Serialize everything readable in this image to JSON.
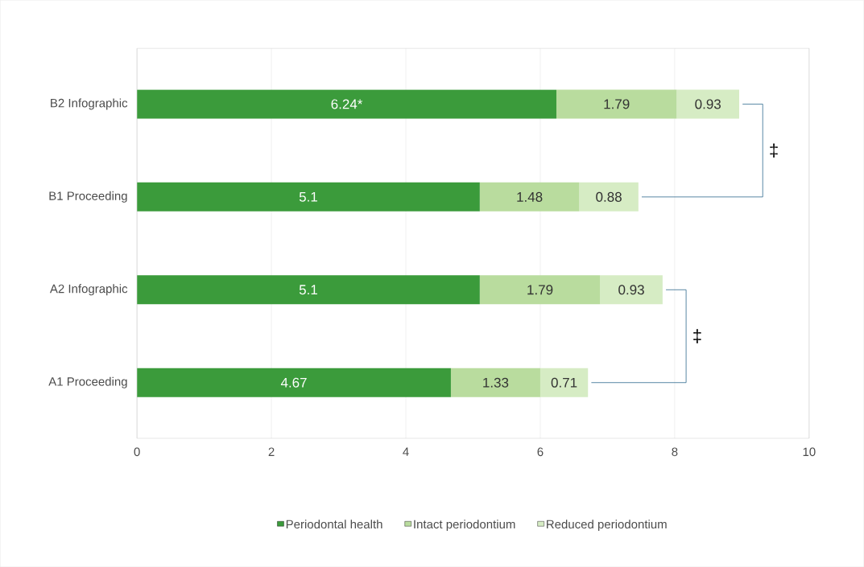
{
  "chart_data": {
    "type": "bar",
    "orientation": "horizontal",
    "stacked": true,
    "categories": [
      "B2 Infographic",
      "B1 Proceeding",
      "A2 Infographic",
      "A1 Proceeding"
    ],
    "series": [
      {
        "name": "Periodontal health",
        "color": "#3b9b3b",
        "values": [
          6.24,
          5.1,
          5.1,
          4.67
        ],
        "value_labels": [
          "6.24*",
          "5.1",
          "5.1",
          "4.67"
        ]
      },
      {
        "name": "Intact periodontium",
        "color": "#b9dc9e",
        "values": [
          1.79,
          1.48,
          1.79,
          1.33
        ],
        "value_labels": [
          "1.79",
          "1.48",
          "1.79",
          "1.33"
        ]
      },
      {
        "name": "Reduced periodontium",
        "color": "#d6ecc4",
        "values": [
          0.93,
          0.88,
          0.93,
          0.71
        ],
        "value_labels": [
          "0.93",
          "0.88",
          "0.93",
          "0.71"
        ]
      }
    ],
    "xlim": [
      0,
      10
    ],
    "xticks": [
      0,
      2,
      4,
      6,
      8,
      10
    ],
    "grid": "x",
    "legend": "bottom",
    "annotations": [
      "‡",
      "‡"
    ]
  }
}
